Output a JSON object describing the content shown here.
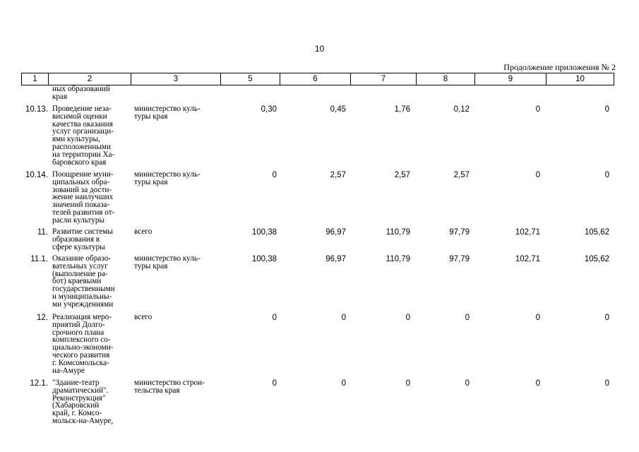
{
  "page_number": "10",
  "appendix_note": "Продолжение приложения № 2",
  "header_columns": [
    "1",
    "2",
    "3",
    "5",
    "6",
    "7",
    "8",
    "9",
    "10"
  ],
  "rows": [
    {
      "num": "",
      "name": "ных образований\nкрая",
      "executor": "",
      "values": [
        "",
        "",
        "",
        "",
        "",
        ""
      ]
    },
    {
      "num": "10.13.",
      "name": "Проведение неза-\nвисимой оценки\nкачества оказания\nуслуг организаци-\nями культуры,\nрасположенными\nна территории Ха-\nбаровского края",
      "executor": "министерство куль-\nтуры края",
      "values": [
        "0,30",
        "0,45",
        "1,76",
        "0,12",
        "0",
        "0"
      ]
    },
    {
      "num": "10.14.",
      "name": "Поощрение муни-\nципальных обра-\nзований за дости-\nжение наилучших\nзначений показа-\nтелей развития от-\nрасли культуры",
      "executor": "министерство куль-\nтуры края",
      "values": [
        "0",
        "2,57",
        "2,57",
        "2,57",
        "0",
        "0"
      ]
    },
    {
      "num": "11.",
      "name": "Развитие системы\nобразования в\nсфере культуры",
      "executor": "всего",
      "values": [
        "100,38",
        "96,97",
        "110,79",
        "97,79",
        "102,71",
        "105,62"
      ]
    },
    {
      "num": "11.1.",
      "name": "Оказание образо-\nвательных услуг\n(выполнение ра-\nбот) краевыми\nгосударственными\nи муниципальны-\nми учреждениями",
      "executor": "министерство куль-\nтуры края",
      "values": [
        "100,38",
        "96,97",
        "110,79",
        "97,79",
        "102,71",
        "105,62"
      ]
    },
    {
      "num": "12.",
      "name": "Реализация меро-\nприятий Долго-\nсрочного плана\nкомплексного со-\nциально-экономи-\nческого развития\nг. Комсомольска-\nна-Амуре",
      "executor": "всего",
      "values": [
        "0",
        "0",
        "0",
        "0",
        "0",
        "0"
      ]
    },
    {
      "num": "12.1.",
      "name": "\"Здание-театр\nдраматический\".\nРеконструкция\"\n(Хабаровский\nкрай, г. Комсо-\nмольск-на-Амуре,",
      "executor": "министерство строи-\nтельства края",
      "values": [
        "0",
        "0",
        "0",
        "0",
        "0",
        "0"
      ]
    }
  ]
}
